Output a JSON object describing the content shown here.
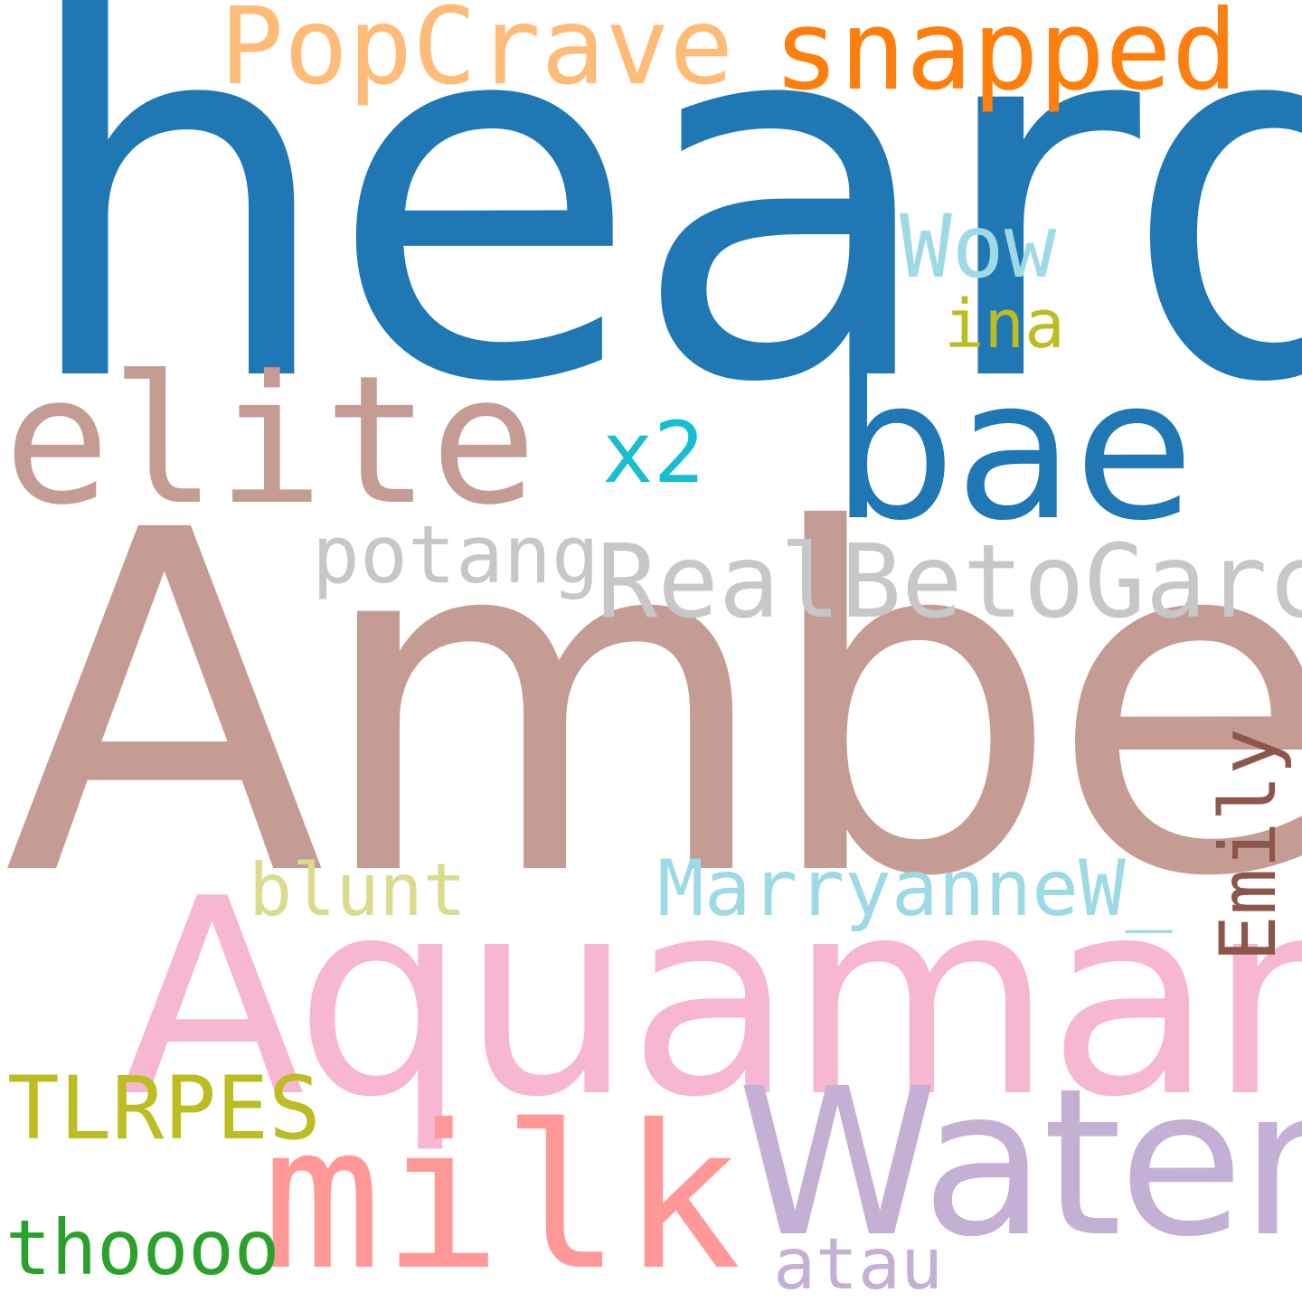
{
  "words": [
    {
      "id": "heard",
      "text": "heard",
      "color": "#1f77b4"
    },
    {
      "id": "amber",
      "text": "Amber",
      "color": "#c49c94"
    },
    {
      "id": "aquaman",
      "text": "Aquaman",
      "color": "#f7b6d2"
    },
    {
      "id": "popcrave",
      "text": "PopCrave",
      "color": "#ffbb78"
    },
    {
      "id": "snapped",
      "text": "snapped",
      "color": "#ff7f0e"
    },
    {
      "id": "wow",
      "text": "Wow",
      "color": "#9edae5"
    },
    {
      "id": "ina",
      "text": "ina",
      "color": "#bcbd22"
    },
    {
      "id": "elite",
      "text": "elite",
      "color": "#c49c94"
    },
    {
      "id": "x2",
      "text": "x2",
      "color": "#17becf"
    },
    {
      "id": "bae",
      "text": "bae",
      "color": "#1f77b4"
    },
    {
      "id": "potang",
      "text": "potang",
      "color": "#c7c7c7"
    },
    {
      "id": "realbetogarcia",
      "text": "RealBetoGarcia",
      "color": "#c7c7c7"
    },
    {
      "id": "blunt",
      "text": "blunt",
      "color": "#dbdb8d"
    },
    {
      "id": "marryannew",
      "text": "MarryanneW_",
      "color": "#9edae5"
    },
    {
      "id": "emily",
      "text": "Emily",
      "color": "#8c564b"
    },
    {
      "id": "tlrpes",
      "text": "TLRPES",
      "color": "#bcbd22"
    },
    {
      "id": "milk",
      "text": "milk",
      "color": "#ff9896"
    },
    {
      "id": "water",
      "text": "Water",
      "color": "#c5b0d5"
    },
    {
      "id": "thoooo",
      "text": "thoooo",
      "color": "#2ca02c"
    },
    {
      "id": "atau",
      "text": "atau",
      "color": "#c5b0d5"
    }
  ]
}
